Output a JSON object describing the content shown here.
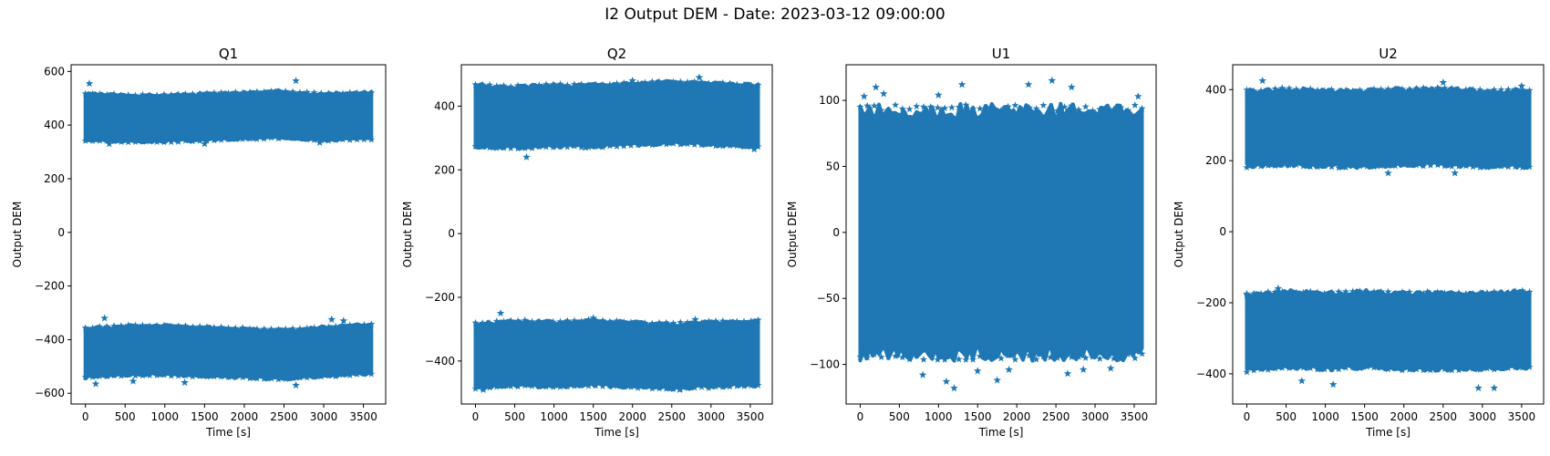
{
  "figure": {
    "title": "I2 Output DEM - Date: 2023-03-12 09:00:00",
    "series_color": "#1f77b4"
  },
  "chart_data": [
    {
      "type": "scatter",
      "title": "Q1",
      "xlabel": "Time [s]",
      "ylabel": "Output DEM",
      "marker": "star",
      "xlim": [
        -180,
        3780
      ],
      "ylim": [
        -640,
        625
      ],
      "xticks": [
        0,
        500,
        1000,
        1500,
        2000,
        2500,
        3000,
        3500
      ],
      "xtick_labels": [
        "0",
        "500",
        "1000",
        "1500",
        "2000",
        "2500",
        "3000",
        "3500"
      ],
      "yticks": [
        -600,
        -400,
        -200,
        0,
        200,
        400,
        600
      ],
      "ytick_labels": [
        "−600",
        "−400",
        "−200",
        "0",
        "200",
        "400",
        "600"
      ],
      "x_range": [
        0,
        3600
      ],
      "bands": [
        {
          "center": [
            [
              0,
              430
            ],
            [
              500,
              425
            ],
            [
              1000,
              425
            ],
            [
              1500,
              430
            ],
            [
              2000,
              435
            ],
            [
              2500,
              440
            ],
            [
              3000,
              430
            ],
            [
              3600,
              435
            ]
          ],
          "halfwidth": 85
        },
        {
          "center": [
            [
              0,
              -450
            ],
            [
              500,
              -440
            ],
            [
              1000,
              -440
            ],
            [
              1500,
              -445
            ],
            [
              2000,
              -450
            ],
            [
              2500,
              -455
            ],
            [
              3000,
              -445
            ],
            [
              3600,
              -435
            ]
          ],
          "halfwidth": 90
        }
      ],
      "outliers": [
        [
          50,
          555
        ],
        [
          240,
          -320
        ],
        [
          2650,
          565
        ],
        [
          2650,
          -570
        ],
        [
          3100,
          -325
        ],
        [
          300,
          330
        ],
        [
          1500,
          330
        ],
        [
          130,
          -565
        ],
        [
          1250,
          -560
        ],
        [
          2950,
          335
        ],
        [
          3250,
          -330
        ],
        [
          600,
          -555
        ]
      ]
    },
    {
      "type": "scatter",
      "title": "Q2",
      "xlabel": "Time [s]",
      "ylabel": "Output DEM",
      "marker": "star",
      "xlim": [
        -180,
        3780
      ],
      "ylim": [
        -535,
        530
      ],
      "xticks": [
        0,
        500,
        1000,
        1500,
        2000,
        2500,
        3000,
        3500
      ],
      "xtick_labels": [
        "0",
        "500",
        "1000",
        "1500",
        "2000",
        "2500",
        "3000",
        "3500"
      ],
      "yticks": [
        -400,
        -200,
        0,
        200,
        400
      ],
      "ytick_labels": [
        "−400",
        "−200",
        "0",
        "200",
        "400"
      ],
      "x_range": [
        0,
        3600
      ],
      "bands": [
        {
          "center": [
            [
              0,
              370
            ],
            [
              500,
              365
            ],
            [
              1000,
              370
            ],
            [
              1500,
              370
            ],
            [
              2000,
              375
            ],
            [
              2500,
              380
            ],
            [
              3000,
              375
            ],
            [
              3600,
              370
            ]
          ],
          "halfwidth": 95
        },
        {
          "center": [
            [
              0,
              -385
            ],
            [
              500,
              -375
            ],
            [
              1000,
              -380
            ],
            [
              1500,
              -375
            ],
            [
              2000,
              -380
            ],
            [
              2500,
              -385
            ],
            [
              3000,
              -380
            ],
            [
              3600,
              -375
            ]
          ],
          "halfwidth": 100
        }
      ],
      "outliers": [
        [
          650,
          240
        ],
        [
          320,
          -250
        ],
        [
          2850,
          490
        ],
        [
          1500,
          -265
        ],
        [
          2800,
          -270
        ],
        [
          3550,
          265
        ],
        [
          2600,
          -490
        ],
        [
          100,
          -490
        ],
        [
          1400,
          270
        ],
        [
          2000,
          480
        ]
      ]
    },
    {
      "type": "scatter",
      "title": "U1",
      "xlabel": "Time [s]",
      "ylabel": "Output DEM",
      "marker": "star",
      "xlim": [
        -180,
        3780
      ],
      "ylim": [
        -130,
        127
      ],
      "xticks": [
        0,
        500,
        1000,
        1500,
        2000,
        2500,
        3000,
        3500
      ],
      "xtick_labels": [
        "0",
        "500",
        "1000",
        "1500",
        "2000",
        "2500",
        "3000",
        "3500"
      ],
      "yticks": [
        -100,
        -50,
        0,
        50,
        100
      ],
      "ytick_labels": [
        "−100",
        "−50",
        "0",
        "50",
        "100"
      ],
      "x_range": [
        0,
        3600
      ],
      "bands": [
        {
          "center": [
            [
              0,
              0
            ],
            [
              3600,
              0
            ]
          ],
          "halfwidth": 92
        }
      ],
      "outliers": [
        [
          200,
          110
        ],
        [
          1300,
          112
        ],
        [
          2450,
          115
        ],
        [
          2150,
          112
        ],
        [
          1200,
          -118
        ],
        [
          1100,
          -113
        ],
        [
          1500,
          -105
        ],
        [
          1750,
          -112
        ],
        [
          2700,
          110
        ],
        [
          2650,
          -107
        ],
        [
          50,
          103
        ],
        [
          3550,
          103
        ],
        [
          800,
          -108
        ],
        [
          300,
          105
        ],
        [
          2850,
          -104
        ],
        [
          3200,
          -103
        ],
        [
          1000,
          104
        ],
        [
          1900,
          -104
        ]
      ]
    },
    {
      "type": "scatter",
      "title": "U2",
      "xlabel": "Time [s]",
      "ylabel": "Output DEM",
      "marker": "star",
      "xlim": [
        -180,
        3780
      ],
      "ylim": [
        -485,
        470
      ],
      "xticks": [
        0,
        500,
        1000,
        1500,
        2000,
        2500,
        3000,
        3500
      ],
      "xtick_labels": [
        "0",
        "500",
        "1000",
        "1500",
        "2000",
        "2500",
        "3000",
        "3500"
      ],
      "yticks": [
        -400,
        -200,
        0,
        200,
        400
      ],
      "ytick_labels": [
        "−400",
        "−200",
        "0",
        "200",
        "400"
      ],
      "x_range": [
        0,
        3600
      ],
      "bands": [
        {
          "center": [
            [
              0,
              290
            ],
            [
              500,
              295
            ],
            [
              1000,
              290
            ],
            [
              1500,
              290
            ],
            [
              2000,
              295
            ],
            [
              2500,
              295
            ],
            [
              3000,
              290
            ],
            [
              3600,
              290
            ]
          ],
          "halfwidth": 105
        },
        {
          "center": [
            [
              0,
              -285
            ],
            [
              500,
              -275
            ],
            [
              1000,
              -280
            ],
            [
              1500,
              -275
            ],
            [
              2000,
              -280
            ],
            [
              2500,
              -280
            ],
            [
              3000,
              -280
            ],
            [
              3600,
              -275
            ]
          ],
          "halfwidth": 105
        }
      ],
      "outliers": [
        [
          200,
          425
        ],
        [
          400,
          -160
        ],
        [
          2500,
          420
        ],
        [
          2650,
          165
        ],
        [
          2950,
          -440
        ],
        [
          3150,
          -440
        ],
        [
          3500,
          410
        ],
        [
          1100,
          -430
        ],
        [
          1800,
          165
        ],
        [
          0,
          -175
        ],
        [
          2300,
          -170
        ],
        [
          700,
          -420
        ]
      ]
    }
  ]
}
